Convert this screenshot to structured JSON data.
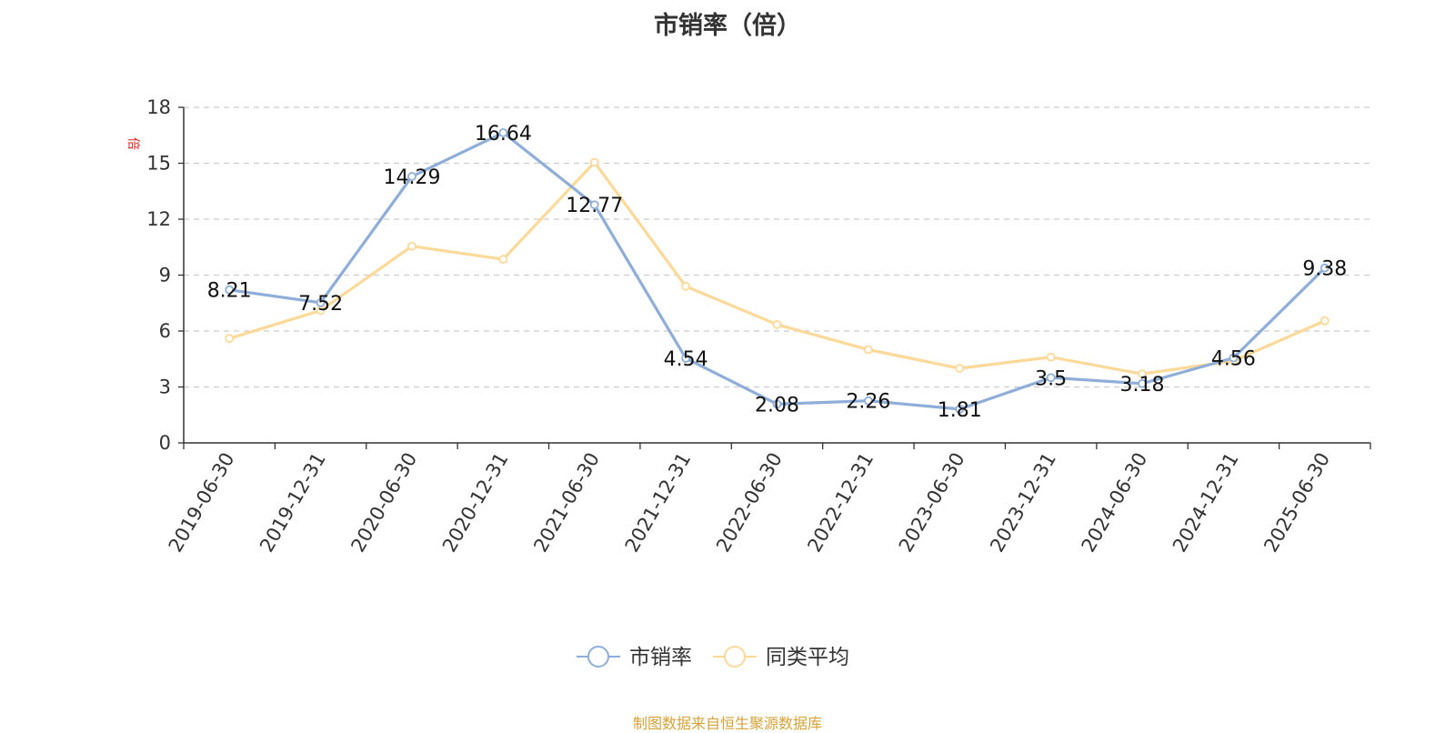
{
  "title": "市销率（倍）",
  "source_note": "制图数据来自恒生聚源数据库",
  "colors": {
    "series_main": "#8eaed9",
    "series_avg": "#fdd999",
    "source": "#d4a33a",
    "unit": "#e02020",
    "axis": "#333333",
    "grid": "#cccccc"
  },
  "chart_data": {
    "type": "line",
    "title": "市销率（倍）",
    "ylabel": "倍",
    "xlabel": "",
    "ylim": [
      0,
      18
    ],
    "yticks": [
      0,
      3,
      6,
      9,
      12,
      15,
      18
    ],
    "grid": "horizontal dashed",
    "legend_position": "bottom",
    "categories": [
      "2019-06-30",
      "2019-12-31",
      "2020-06-30",
      "2020-12-31",
      "2021-06-30",
      "2021-12-31",
      "2022-06-30",
      "2022-12-31",
      "2023-06-30",
      "2023-12-31",
      "2024-06-30",
      "2024-12-31",
      "2025-06-30"
    ],
    "series": [
      {
        "name": "市销率",
        "values": [
          8.21,
          7.52,
          14.29,
          16.64,
          12.77,
          4.54,
          2.08,
          2.26,
          1.81,
          3.5,
          3.18,
          4.56,
          9.38
        ],
        "labels": [
          "8.21",
          "7.52",
          "14.29",
          "16.64",
          "12.77",
          "4.54",
          "2.08",
          "2.26",
          "1.81",
          "3.5",
          "3.18",
          "4.56",
          "9.38"
        ]
      },
      {
        "name": "同类平均",
        "values": [
          5.6,
          7.1,
          10.55,
          9.85,
          15.05,
          8.4,
          6.35,
          5.0,
          4.0,
          4.6,
          3.7,
          4.4,
          6.55
        ]
      }
    ]
  }
}
